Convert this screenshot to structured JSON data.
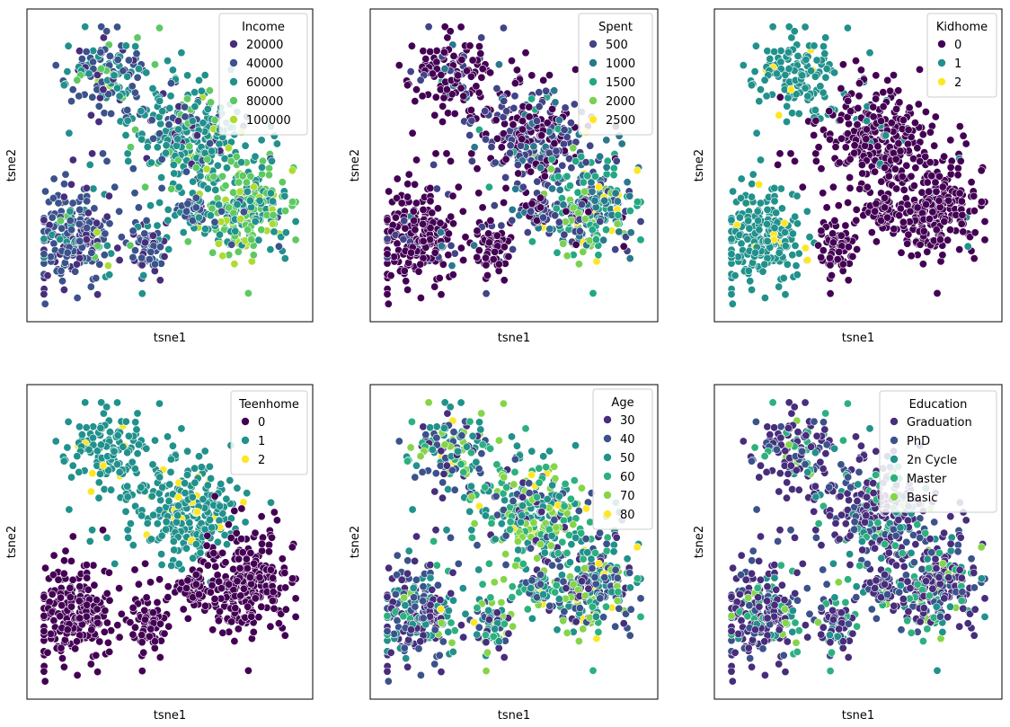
{
  "figure": {
    "subplots": [
      {
        "xlabel": "tsne1",
        "ylabel": "tsne2",
        "legend": {
          "title": "Income",
          "entries": [
            {
              "label": "20000",
              "color": "#472d7b"
            },
            {
              "label": "40000",
              "color": "#3b528b"
            },
            {
              "label": "60000",
              "color": "#21918c"
            },
            {
              "label": "80000",
              "color": "#5ec962"
            },
            {
              "label": "100000",
              "color": "#addc30"
            }
          ]
        }
      },
      {
        "xlabel": "tsne1",
        "ylabel": "tsne2",
        "legend": {
          "title": "Spent",
          "entries": [
            {
              "label": "500",
              "color": "#414487"
            },
            {
              "label": "1000",
              "color": "#2a788e"
            },
            {
              "label": "1500",
              "color": "#22a884"
            },
            {
              "label": "2000",
              "color": "#7ad151"
            },
            {
              "label": "2500",
              "color": "#fde725"
            }
          ]
        }
      },
      {
        "xlabel": "tsne1",
        "ylabel": "tsne2",
        "legend": {
          "title": "Kidhome",
          "entries": [
            {
              "label": "0",
              "color": "#440154"
            },
            {
              "label": "1",
              "color": "#21918c"
            },
            {
              "label": "2",
              "color": "#fde725"
            }
          ]
        }
      },
      {
        "xlabel": "tsne1",
        "ylabel": "tsne2",
        "legend": {
          "title": "Teenhome",
          "entries": [
            {
              "label": "0",
              "color": "#440154"
            },
            {
              "label": "1",
              "color": "#21918c"
            },
            {
              "label": "2",
              "color": "#fde725"
            }
          ]
        }
      },
      {
        "xlabel": "tsne1",
        "ylabel": "tsne2",
        "legend": {
          "title": "Age",
          "entries": [
            {
              "label": "30",
              "color": "#472d7b"
            },
            {
              "label": "40",
              "color": "#3b528b"
            },
            {
              "label": "50",
              "color": "#21918c"
            },
            {
              "label": "60",
              "color": "#2cb17e"
            },
            {
              "label": "70",
              "color": "#86d549"
            },
            {
              "label": "80",
              "color": "#fde725"
            }
          ]
        }
      },
      {
        "xlabel": "tsne1",
        "ylabel": "tsne2",
        "legend": {
          "title": "Education",
          "entries": [
            {
              "label": "Graduation",
              "color": "#472d7b"
            },
            {
              "label": "PhD",
              "color": "#3b528b"
            },
            {
              "label": "2n Cycle",
              "color": "#21918c"
            },
            {
              "label": "Master",
              "color": "#2cb17e"
            },
            {
              "label": "Basic",
              "color": "#86d549"
            }
          ]
        }
      }
    ]
  },
  "chart_data": [
    {
      "type": "scatter",
      "xlabel": "tsne1",
      "ylabel": "tsne2",
      "hue": "Income",
      "hue_levels": [
        20000,
        40000,
        60000,
        80000,
        100000
      ],
      "clusters": [
        {
          "x": 0.27,
          "y": 0.8,
          "hue": "40000–60000",
          "share": 0.14
        },
        {
          "x": 0.55,
          "y": 0.6,
          "hue": "60000",
          "share": 0.26
        },
        {
          "x": 0.77,
          "y": 0.35,
          "hue": "60000–100000",
          "share": 0.26
        },
        {
          "x": 0.15,
          "y": 0.26,
          "hue": "20000–40000",
          "share": 0.22
        },
        {
          "x": 0.42,
          "y": 0.23,
          "hue": "20000–40000",
          "share": 0.07
        },
        {
          "x": 0.6,
          "y": 0.34,
          "hue": "40000–60000",
          "share": 0.05
        }
      ],
      "xticks": [],
      "yticks": [],
      "grid": false,
      "legend_loc": "upper right"
    },
    {
      "type": "scatter",
      "xlabel": "tsne1",
      "ylabel": "tsne2",
      "hue": "Spent",
      "hue_levels": [
        500,
        1000,
        1500,
        2000,
        2500
      ],
      "clusters": [
        {
          "x": 0.27,
          "y": 0.8,
          "hue": "<500",
          "share": 0.14
        },
        {
          "x": 0.55,
          "y": 0.6,
          "hue": "500–1500",
          "share": 0.26
        },
        {
          "x": 0.77,
          "y": 0.35,
          "hue": "1000–2500",
          "share": 0.26
        },
        {
          "x": 0.15,
          "y": 0.26,
          "hue": "<500",
          "share": 0.22
        },
        {
          "x": 0.42,
          "y": 0.23,
          "hue": "<500",
          "share": 0.07
        },
        {
          "x": 0.6,
          "y": 0.34,
          "hue": "500–1000",
          "share": 0.05
        }
      ],
      "xticks": [],
      "yticks": [],
      "grid": false,
      "legend_loc": "upper right"
    },
    {
      "type": "scatter",
      "xlabel": "tsne1",
      "ylabel": "tsne2",
      "hue": "Kidhome",
      "hue_levels": [
        0,
        1,
        2
      ],
      "clusters": [
        {
          "x": 0.27,
          "y": 0.8,
          "hue": "1",
          "share": 0.14
        },
        {
          "x": 0.55,
          "y": 0.6,
          "hue": "0",
          "share": 0.26
        },
        {
          "x": 0.77,
          "y": 0.35,
          "hue": "0",
          "share": 0.26
        },
        {
          "x": 0.15,
          "y": 0.26,
          "hue": "1",
          "share": 0.22
        },
        {
          "x": 0.42,
          "y": 0.23,
          "hue": "0",
          "share": 0.07
        },
        {
          "x": 0.6,
          "y": 0.34,
          "hue": "0",
          "share": 0.05
        }
      ],
      "xticks": [],
      "yticks": [],
      "grid": false,
      "legend_loc": "upper right"
    },
    {
      "type": "scatter",
      "xlabel": "tsne1",
      "ylabel": "tsne2",
      "hue": "Teenhome",
      "hue_levels": [
        0,
        1,
        2
      ],
      "clusters": [
        {
          "x": 0.27,
          "y": 0.8,
          "hue": "1",
          "share": 0.14
        },
        {
          "x": 0.55,
          "y": 0.6,
          "hue": "1",
          "share": 0.26
        },
        {
          "x": 0.77,
          "y": 0.35,
          "hue": "0",
          "share": 0.26
        },
        {
          "x": 0.15,
          "y": 0.26,
          "hue": "0",
          "share": 0.22
        },
        {
          "x": 0.42,
          "y": 0.23,
          "hue": "0",
          "share": 0.07
        },
        {
          "x": 0.6,
          "y": 0.34,
          "hue": "0",
          "share": 0.05
        }
      ],
      "xticks": [],
      "yticks": [],
      "grid": false,
      "legend_loc": "upper right"
    },
    {
      "type": "scatter",
      "xlabel": "tsne1",
      "ylabel": "tsne2",
      "hue": "Age",
      "hue_levels": [
        30,
        40,
        50,
        60,
        70,
        80
      ],
      "clusters": [
        {
          "x": 0.27,
          "y": 0.8,
          "hue": "40–70",
          "share": 0.14
        },
        {
          "x": 0.55,
          "y": 0.6,
          "hue": "50–80",
          "share": 0.26
        },
        {
          "x": 0.77,
          "y": 0.35,
          "hue": "40–70",
          "share": 0.26
        },
        {
          "x": 0.15,
          "y": 0.26,
          "hue": "30–50",
          "share": 0.22
        },
        {
          "x": 0.42,
          "y": 0.23,
          "hue": "40–60",
          "share": 0.07
        },
        {
          "x": 0.6,
          "y": 0.34,
          "hue": "40–70",
          "share": 0.05
        }
      ],
      "xticks": [],
      "yticks": [],
      "grid": false,
      "legend_loc": "upper right"
    },
    {
      "type": "scatter",
      "xlabel": "tsne1",
      "ylabel": "tsne2",
      "hue": "Education",
      "hue_levels": [
        "Graduation",
        "PhD",
        "2n Cycle",
        "Master",
        "Basic"
      ],
      "clusters": [
        {
          "x": 0.27,
          "y": 0.8,
          "hue": "Graduation/PhD",
          "share": 0.14
        },
        {
          "x": 0.55,
          "y": 0.6,
          "hue": "Graduation/PhD",
          "share": 0.26
        },
        {
          "x": 0.77,
          "y": 0.35,
          "hue": "Graduation/PhD",
          "share": 0.26
        },
        {
          "x": 0.15,
          "y": 0.26,
          "hue": "Graduation/PhD",
          "share": 0.22
        },
        {
          "x": 0.42,
          "y": 0.23,
          "hue": "Graduation/PhD",
          "share": 0.07
        },
        {
          "x": 0.6,
          "y": 0.34,
          "hue": "Graduation/PhD",
          "share": 0.05
        }
      ],
      "xticks": [],
      "yticks": [],
      "grid": false,
      "legend_loc": "upper right"
    }
  ]
}
